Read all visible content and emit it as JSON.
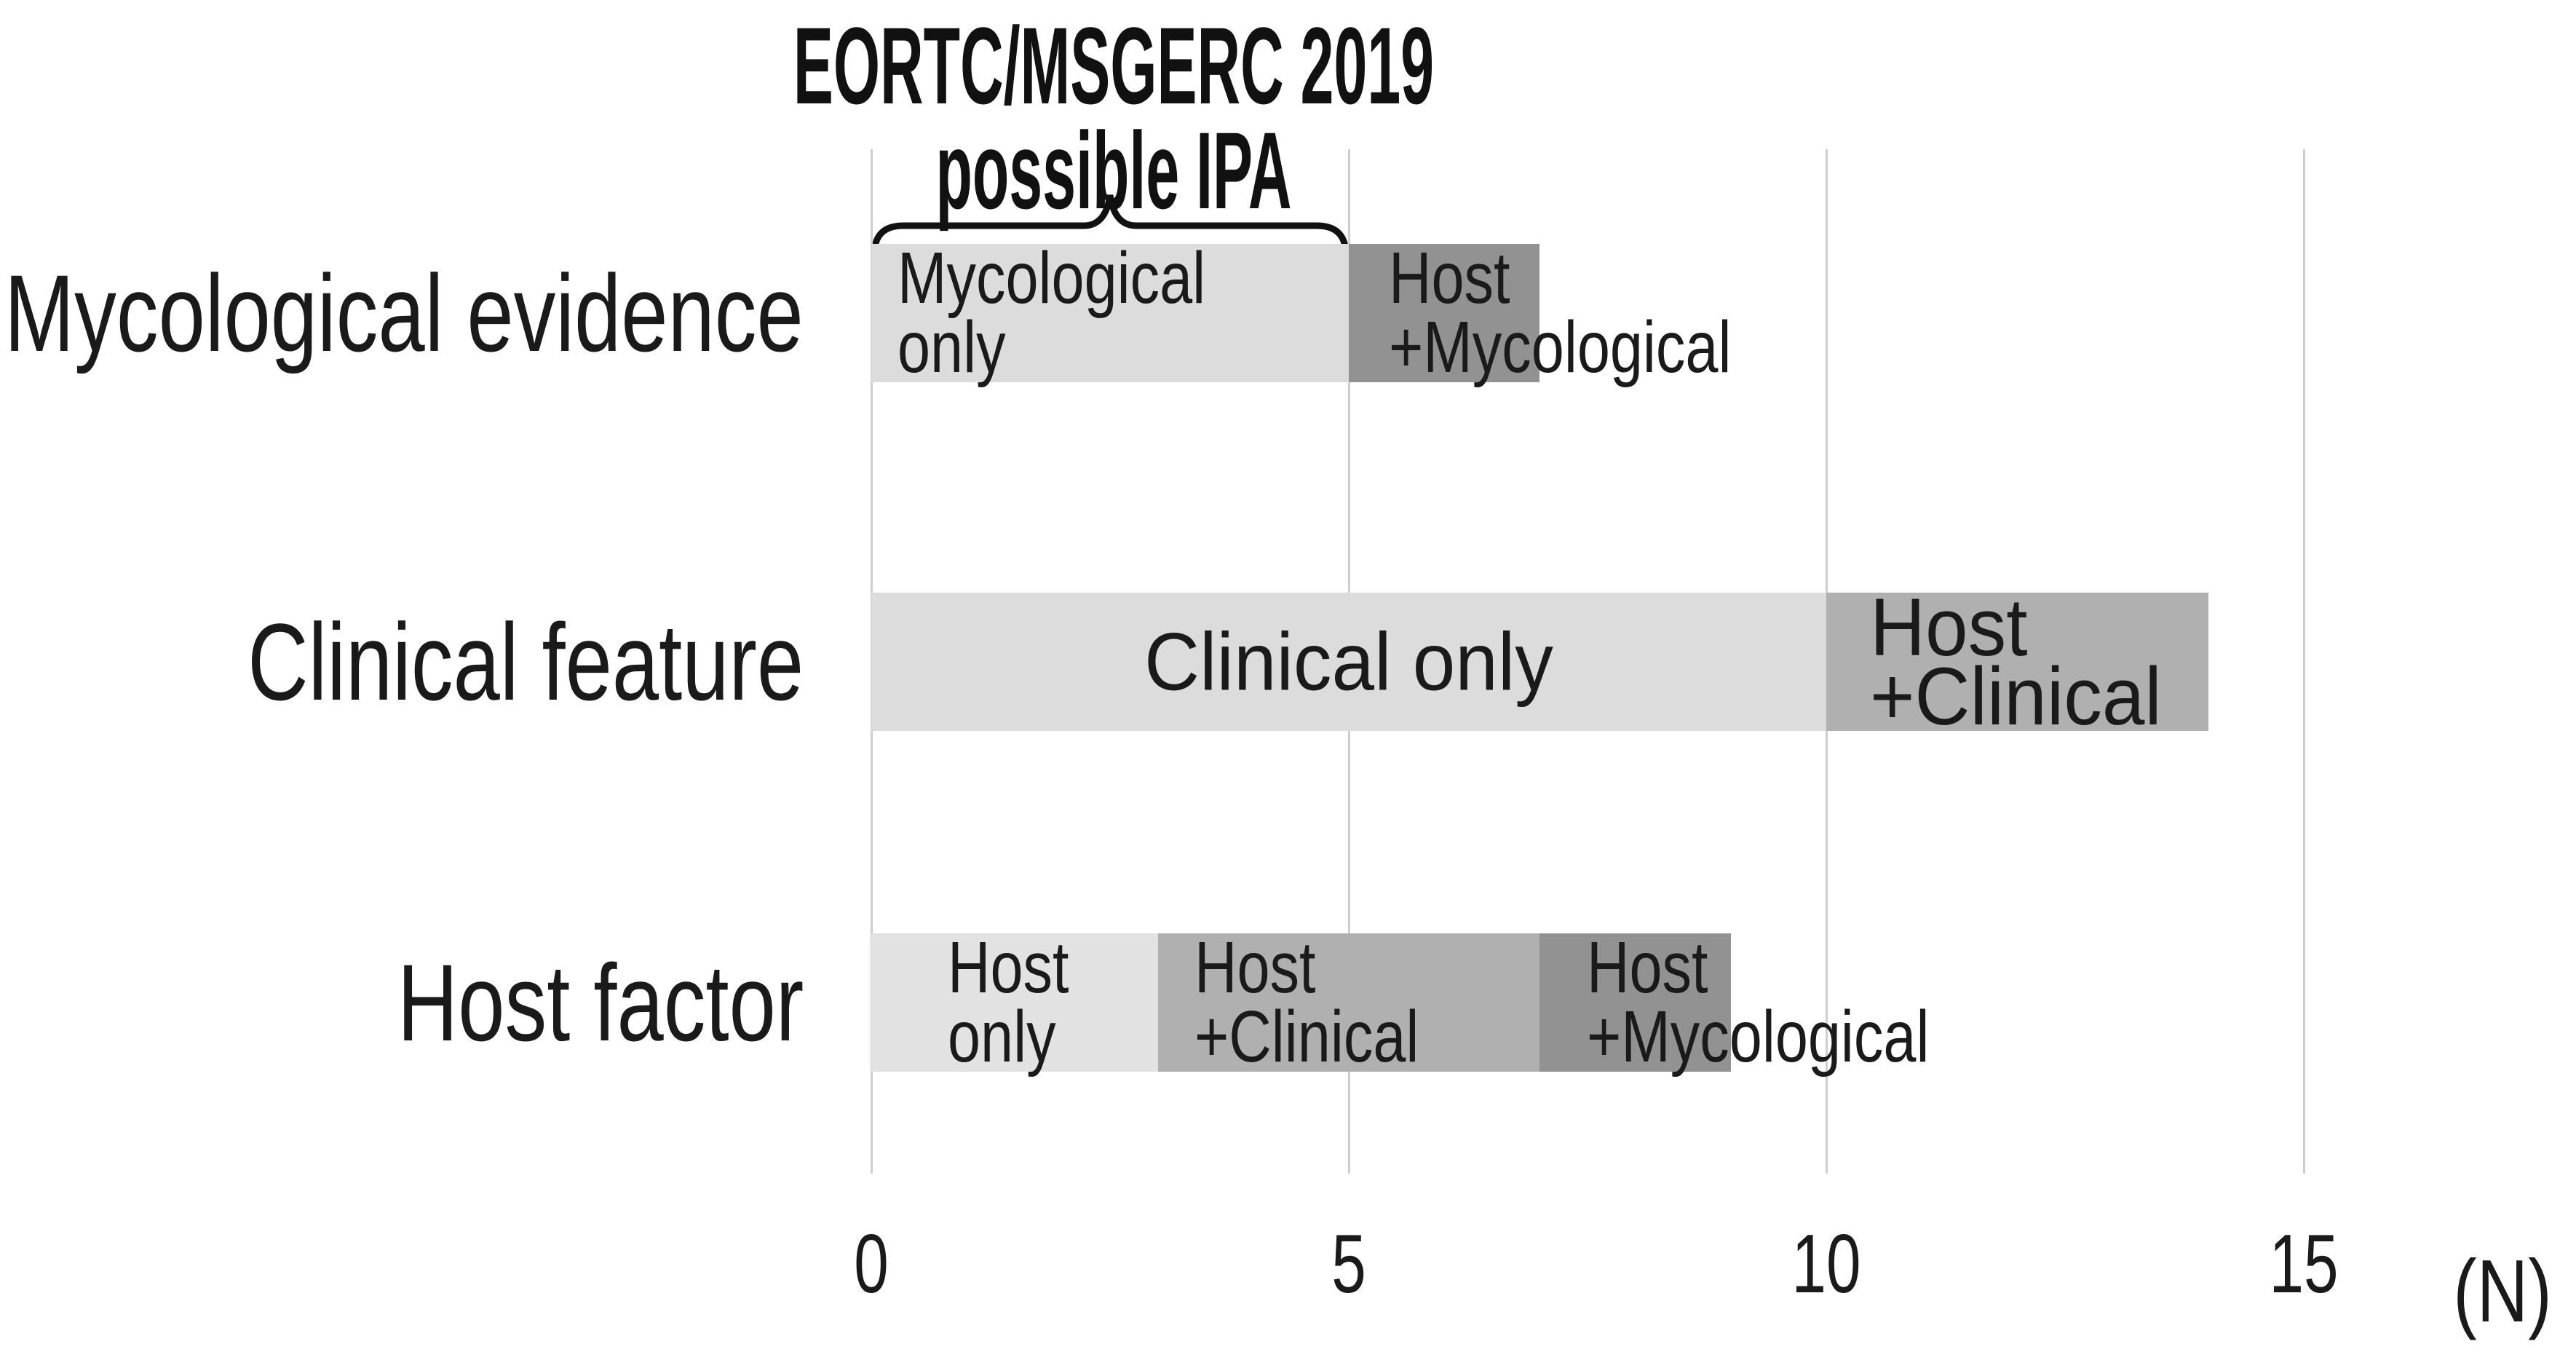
{
  "figure": {
    "annotation": {
      "line1": "EORTC/MSGERC 2019",
      "line2": "possible IPA",
      "span_from": 0,
      "span_to": 5
    },
    "x_axis": {
      "tick_labels": [
        "0",
        "5",
        "10",
        "15"
      ],
      "tick_values": [
        0,
        5,
        10,
        15
      ],
      "unit_label": "(N)"
    },
    "colors": {
      "gridline": "#cfcfcf",
      "text": "#1a1a1a",
      "bracket": "#111111",
      "light_gray": "#dcdcdc",
      "lighter_gray": "#e2e2e2",
      "medium_gray": "#b0b0b0",
      "dark_gray": "#929292"
    },
    "chart_data": {
      "type": "bar",
      "orientation": "horizontal",
      "stacked": true,
      "grid": true,
      "xlim": [
        0,
        15
      ],
      "xlabel": "(N)",
      "title": "EORTC/MSGERC 2019 possible IPA",
      "categories": [
        "Mycological evidence",
        "Clinical feature",
        "Host factor"
      ],
      "rows": [
        {
          "category": "Mycological evidence",
          "total": 7,
          "segments": [
            {
              "label": "Mycological only",
              "lines": [
                "Mycological",
                "only"
              ],
              "value": 5,
              "color": "#dcdcdc"
            },
            {
              "label": "Host +Mycological",
              "lines": [
                "Host",
                "+Mycological"
              ],
              "value": 2,
              "color": "#929292"
            }
          ]
        },
        {
          "category": "Clinical feature",
          "total": 14,
          "segments": [
            {
              "label": "Clinical only",
              "lines": [
                "Clinical only"
              ],
              "value": 10,
              "color": "#dcdcdc"
            },
            {
              "label": "Host +Clinical",
              "lines": [
                "Host",
                "+Clinical"
              ],
              "value": 4,
              "color": "#b0b0b0"
            }
          ]
        },
        {
          "category": "Host factor",
          "total": 9,
          "segments": [
            {
              "label": "Host only",
              "lines": [
                "Host",
                "only"
              ],
              "value": 3,
              "color": "#e2e2e2"
            },
            {
              "label": "Host +Clinical",
              "lines": [
                "Host",
                "+Clinical"
              ],
              "value": 4,
              "color": "#b0b0b0"
            },
            {
              "label": "Host +Mycological",
              "lines": [
                "Host",
                "+Mycological"
              ],
              "value": 2,
              "color": "#929292"
            }
          ]
        }
      ]
    }
  }
}
